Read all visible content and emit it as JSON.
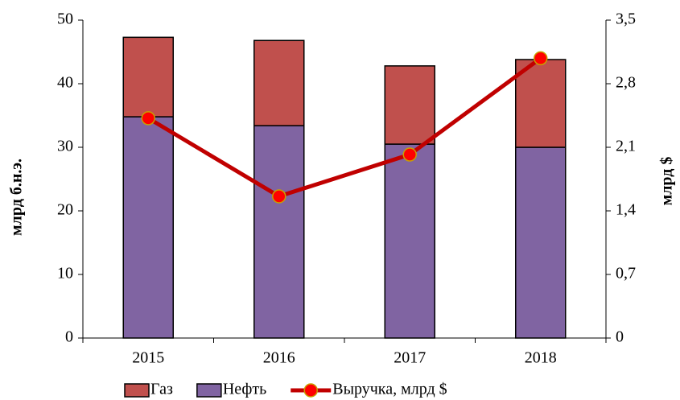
{
  "chart_data": {
    "type": "bar",
    "stacked": true,
    "y_label": "млрд б.н.э.",
    "y2_label": "млрд $",
    "categories": [
      "2015",
      "2016",
      "2017",
      "2018"
    ],
    "series": [
      {
        "name": "Газ",
        "color": "#c0504d",
        "values": [
          12.5,
          13.4,
          12.3,
          13.8
        ]
      },
      {
        "name": "Нефть",
        "color": "#8064a2",
        "values": [
          34.8,
          33.4,
          30.5,
          30.0
        ]
      },
      {
        "name": "Выручка, млрд $",
        "type": "line",
        "axis": "y2",
        "color": "#c00000",
        "marker_color": "#ff0000",
        "values": [
          2.42,
          1.56,
          2.02,
          3.08
        ]
      }
    ],
    "ylim": [
      0,
      50
    ],
    "yticks": [
      0,
      10,
      20,
      30,
      40,
      50
    ],
    "y2lim": [
      0,
      3.5
    ],
    "y2ticks": [
      0,
      {
        "value": 0.7,
        "label": "0,7"
      },
      {
        "value": 1.4,
        "label": "1,4"
      },
      {
        "value": 2.1,
        "label": "2,1"
      },
      {
        "value": 2.8,
        "label": "2,8"
      },
      {
        "value": 3.5,
        "label": "3,5"
      }
    ],
    "legend": "bottom"
  }
}
